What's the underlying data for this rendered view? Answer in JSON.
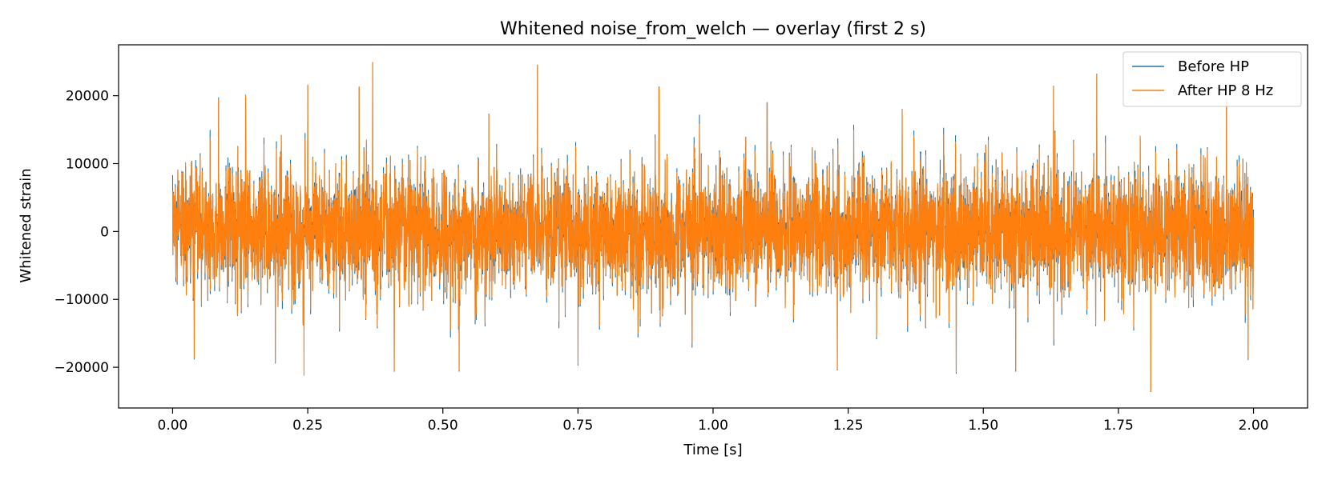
{
  "chart_data": {
    "type": "line",
    "title": "Whitened noise_from_welch — overlay (first 2 s)",
    "xlabel": "Time [s]",
    "ylabel": "Whitened strain",
    "xlim": [
      -0.1,
      2.1
    ],
    "ylim": [
      -26000,
      27500
    ],
    "x_ticks": [
      0.0,
      0.25,
      0.5,
      0.75,
      1.0,
      1.25,
      1.5,
      1.75,
      2.0
    ],
    "x_tick_labels": [
      "0.00",
      "0.25",
      "0.50",
      "0.75",
      "1.00",
      "1.25",
      "1.50",
      "1.75",
      "2.00"
    ],
    "y_ticks": [
      -20000,
      -10000,
      0,
      10000,
      20000
    ],
    "y_tick_labels": [
      "−20000",
      "−10000",
      "0",
      "10000",
      "20000"
    ],
    "grid": false,
    "legend_position": "top-right",
    "x_range": [
      0.0,
      2.0
    ],
    "series": [
      {
        "name": "Before HP",
        "color": "#1f77b4",
        "style": "dense-noise",
        "typical_abs_peak": 13000,
        "peaks": [
          [
            0.0,
            8300
          ],
          [
            0.04,
            -18800
          ],
          [
            0.085,
            19700
          ],
          [
            0.135,
            20100
          ],
          [
            0.19,
            -19400
          ],
          [
            0.25,
            21500
          ],
          [
            0.345,
            21200
          ],
          [
            0.37,
            24900
          ],
          [
            0.41,
            -20600
          ],
          [
            0.53,
            -20600
          ],
          [
            0.585,
            17300
          ],
          [
            0.675,
            24500
          ],
          [
            0.75,
            -19700
          ],
          [
            0.9,
            21300
          ],
          [
            1.1,
            19000
          ],
          [
            1.23,
            -20400
          ],
          [
            1.35,
            18000
          ],
          [
            1.45,
            -20900
          ],
          [
            1.56,
            -20600
          ],
          [
            1.63,
            21400
          ],
          [
            1.71,
            23200
          ],
          [
            1.81,
            -23600
          ],
          [
            1.95,
            19400
          ],
          [
            1.99,
            -18900
          ]
        ]
      },
      {
        "name": "After HP 8 Hz",
        "color": "#ff7f0e",
        "style": "dense-noise",
        "typical_abs_peak": 12500,
        "peaks": [
          [
            0.0,
            6000
          ],
          [
            0.04,
            -18600
          ],
          [
            0.085,
            19500
          ],
          [
            0.135,
            20000
          ],
          [
            0.19,
            -19300
          ],
          [
            0.243,
            -21200
          ],
          [
            0.25,
            21600
          ],
          [
            0.345,
            21300
          ],
          [
            0.37,
            24900
          ],
          [
            0.41,
            -20500
          ],
          [
            0.53,
            -20400
          ],
          [
            0.585,
            17200
          ],
          [
            0.675,
            24500
          ],
          [
            0.75,
            -19500
          ],
          [
            0.9,
            21200
          ],
          [
            1.1,
            18900
          ],
          [
            1.23,
            -20200
          ],
          [
            1.35,
            17900
          ],
          [
            1.45,
            -20700
          ],
          [
            1.56,
            -20400
          ],
          [
            1.63,
            21300
          ],
          [
            1.71,
            23100
          ],
          [
            1.81,
            -23500
          ],
          [
            1.95,
            19300
          ],
          [
            1.99,
            -18800
          ]
        ]
      }
    ]
  }
}
